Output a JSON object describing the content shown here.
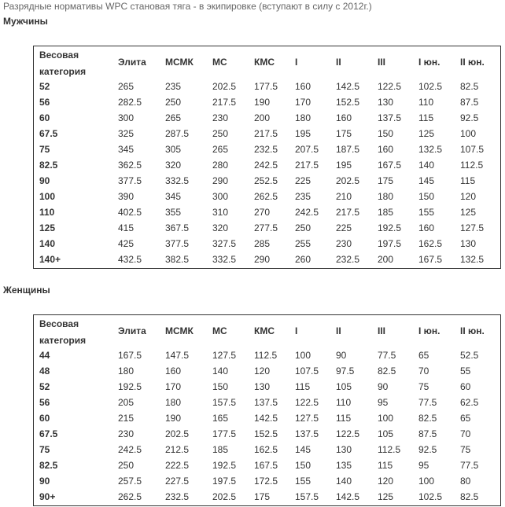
{
  "title": "Разрядные нормативы WPC становая тяга - в экипировке (вступают в силу с 2012г.)",
  "sections": [
    {
      "heading": "Мужчины",
      "table": {
        "header": [
          "Весовая категория",
          "Элита",
          "МСМК",
          "МС",
          "КМС",
          "I",
          "II",
          "III",
          "I юн.",
          "II юн."
        ],
        "rows": [
          [
            "52",
            "265",
            "235",
            "202.5",
            "177.5",
            "160",
            "142.5",
            "122.5",
            "102.5",
            "82.5"
          ],
          [
            "56",
            "282.5",
            "250",
            "217.5",
            "190",
            "170",
            "152.5",
            "130",
            "110",
            "87.5"
          ],
          [
            "60",
            "300",
            "265",
            "230",
            "200",
            "180",
            "160",
            "137.5",
            "115",
            "92.5"
          ],
          [
            "67.5",
            "325",
            "287.5",
            "250",
            "217.5",
            "195",
            "175",
            "150",
            "125",
            "100"
          ],
          [
            "75",
            "345",
            "305",
            "265",
            "232.5",
            "207.5",
            "187.5",
            "160",
            "132.5",
            "107.5"
          ],
          [
            "82.5",
            "362.5",
            "320",
            "280",
            "242.5",
            "217.5",
            "195",
            "167.5",
            "140",
            "112.5"
          ],
          [
            "90",
            "377.5",
            "332.5",
            "290",
            "252.5",
            "225",
            "202.5",
            "175",
            "145",
            "115"
          ],
          [
            "100",
            "390",
            "345",
            "300",
            "262.5",
            "235",
            "210",
            "180",
            "150",
            "120"
          ],
          [
            "110",
            "402.5",
            "355",
            "310",
            "270",
            "242.5",
            "217.5",
            "185",
            "155",
            "125"
          ],
          [
            "125",
            "415",
            "367.5",
            "320",
            "277.5",
            "250",
            "225",
            "192.5",
            "160",
            "127.5"
          ],
          [
            "140",
            "425",
            "377.5",
            "327.5",
            "285",
            "255",
            "230",
            "197.5",
            "162.5",
            "130"
          ],
          [
            "140+",
            "432.5",
            "382.5",
            "332.5",
            "290",
            "260",
            "232.5",
            "200",
            "167.5",
            "132.5"
          ]
        ]
      }
    },
    {
      "heading": "Женщины",
      "table": {
        "header": [
          "Весовая категория",
          "Элита",
          "МСМК",
          "МС",
          "КМС",
          "I",
          "II",
          "III",
          "I юн.",
          "II юн."
        ],
        "rows": [
          [
            "44",
            "167.5",
            "147.5",
            "127.5",
            "112.5",
            "100",
            "90",
            "77.5",
            "65",
            "52.5"
          ],
          [
            "48",
            "180",
            "160",
            "140",
            "120",
            "107.5",
            "97.5",
            "82.5",
            "70",
            "55"
          ],
          [
            "52",
            "192.5",
            "170",
            "150",
            "130",
            "115",
            "105",
            "90",
            "75",
            "60"
          ],
          [
            "56",
            "205",
            "180",
            "157.5",
            "137.5",
            "122.5",
            "110",
            "95",
            "77.5",
            "62.5"
          ],
          [
            "60",
            "215",
            "190",
            "165",
            "142.5",
            "127.5",
            "115",
            "100",
            "82.5",
            "65"
          ],
          [
            "67.5",
            "230",
            "202.5",
            "177.5",
            "152.5",
            "137.5",
            "122.5",
            "105",
            "87.5",
            "70"
          ],
          [
            "75",
            "242.5",
            "212.5",
            "185",
            "162.5",
            "145",
            "130",
            "112.5",
            "92.5",
            "75"
          ],
          [
            "82.5",
            "250",
            "222.5",
            "192.5",
            "167.5",
            "150",
            "135",
            "115",
            "95",
            "77.5"
          ],
          [
            "90",
            "257.5",
            "227.5",
            "197.5",
            "172.5",
            "155",
            "140",
            "120",
            "100",
            "80"
          ],
          [
            "90+",
            "262.5",
            "232.5",
            "202.5",
            "175",
            "157.5",
            "142.5",
            "125",
            "102.5",
            "82.5"
          ]
        ]
      }
    }
  ]
}
